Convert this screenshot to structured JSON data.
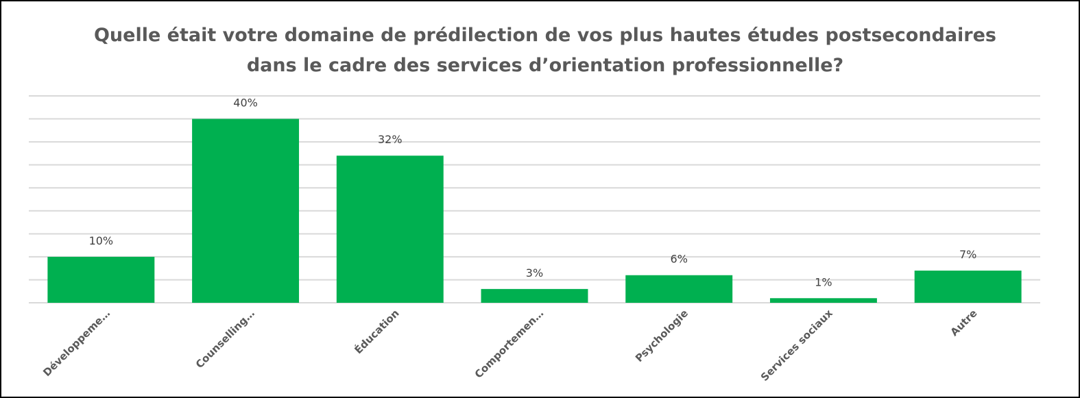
{
  "chart_data": {
    "type": "bar",
    "title": [
      "Quelle était votre domaine de prédilection de vos plus hautes études postsecondaires",
      "dans le cadre des services d’orientation professionnelle?"
    ],
    "categories": [
      "Développeme…",
      "Counselling…",
      "Éducation",
      "Comportemen…",
      "Psychologie",
      "Services sociaux",
      "Autre"
    ],
    "values": [
      10,
      40,
      32,
      3,
      6,
      1,
      7
    ],
    "value_labels": [
      "10%",
      "40%",
      "32%",
      "3%",
      "6%",
      "1%",
      "7%"
    ],
    "color": "#00b050",
    "ylim": [
      0,
      45
    ],
    "yticks": [
      0,
      5,
      10,
      15,
      20,
      25,
      30,
      35,
      40,
      45
    ],
    "grid": true
  }
}
